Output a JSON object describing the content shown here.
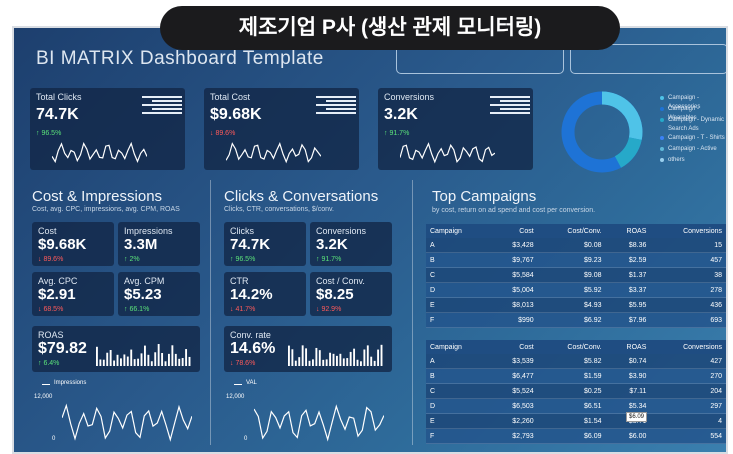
{
  "banner": "제조기업 P사 (생산 관제  모니터링)",
  "title": "BI MATRIX Dashboard Template",
  "kpis": [
    {
      "label": "Total Clicks",
      "value": "74.7K",
      "change": "↑ 96.5%"
    },
    {
      "label": "Total Cost",
      "value": "$9.68K",
      "change": "↓ 89.6%"
    },
    {
      "label": "Conversions",
      "value": "3.2K",
      "change": "↑ 91.7%"
    }
  ],
  "donut_legend": [
    "Campaign - Accessories",
    "Campaign - Wearables",
    "Campaign - Dynamic Search Ads",
    "Campaign - T - Shirts",
    "Campaign - Active",
    "others"
  ],
  "sections": [
    {
      "title": "Cost & Impressions",
      "subtitle": "Cost, avg. CPC, impressions, avg. CPM, ROAS",
      "cards": [
        {
          "label": "Cost",
          "value": "$9.68K",
          "change": "↓ 89.6%"
        },
        {
          "label": "Impressions",
          "value": "3.3M",
          "change": "↑ 2%"
        },
        {
          "label": "Avg. CPC",
          "value": "$2.91",
          "change": "↓ 68.5%"
        },
        {
          "label": "Avg. CPM",
          "value": "$5.23",
          "change": "↑ 66.1%"
        },
        {
          "label": "ROAS",
          "value": "$79.82",
          "change": "↑ 6.4%"
        }
      ],
      "legend": "Impressions",
      "axis_top": "12,000",
      "axis_bottom": "0"
    },
    {
      "title": "Clicks & Conversations",
      "subtitle": "Clicks, CTR, conversations, $/conv.",
      "cards": [
        {
          "label": "Clicks",
          "value": "74.7K",
          "change": "↑ 96.5%"
        },
        {
          "label": "Conversions",
          "value": "3.2K",
          "change": "↑ 91.7%"
        },
        {
          "label": "CTR",
          "value": "14.2%",
          "change": "↓ 41.7%"
        },
        {
          "label": "Cost / Conv.",
          "value": "$8.25",
          "change": "↓ 92.9%"
        },
        {
          "label": "Conv. rate",
          "value": "14.6%",
          "change": "↓ 78.6%"
        }
      ],
      "legend": "VAL",
      "axis_top": "12,000",
      "axis_bottom": "0"
    }
  ],
  "top_campaigns": {
    "title": "Top Campaigns",
    "subtitle": "by cost, return on ad spend and cost per conversion.",
    "tables": [
      {
        "headers": [
          "Campaign",
          "Cost",
          "Cost/Conv.",
          "ROAS",
          "Conversions"
        ],
        "rows": [
          [
            "A",
            "$3,428",
            "$0.08",
            "$8.36",
            "15"
          ],
          [
            "B",
            "$9,767",
            "$9.23",
            "$2.59",
            "457"
          ],
          [
            "C",
            "$5,584",
            "$9.08",
            "$1.37",
            "38"
          ],
          [
            "D",
            "$5,004",
            "$5.92",
            "$3.37",
            "278"
          ],
          [
            "E",
            "$8,013",
            "$4.93",
            "$5.95",
            "436"
          ],
          [
            "F",
            "$990",
            "$6.92",
            "$7.96",
            "693"
          ]
        ]
      },
      {
        "headers": [
          "Campaign",
          "Cost",
          "Cost/Conv.",
          "ROAS",
          "Conversions"
        ],
        "rows": [
          [
            "A",
            "$3,539",
            "$5.82",
            "$0.74",
            "427"
          ],
          [
            "B",
            "$6,477",
            "$1.59",
            "$3.90",
            "270"
          ],
          [
            "C",
            "$5,524",
            "$0.25",
            "$7.11",
            "204"
          ],
          [
            "D",
            "$6,503",
            "$6.51",
            "$5.34",
            "297"
          ],
          [
            "E",
            "$2,260",
            "$1.54",
            "$3.71",
            "4"
          ],
          [
            "F",
            "$2,793",
            "$6.09",
            "$6.00",
            "554"
          ]
        ]
      }
    ],
    "tooltip": "$6.09"
  }
}
